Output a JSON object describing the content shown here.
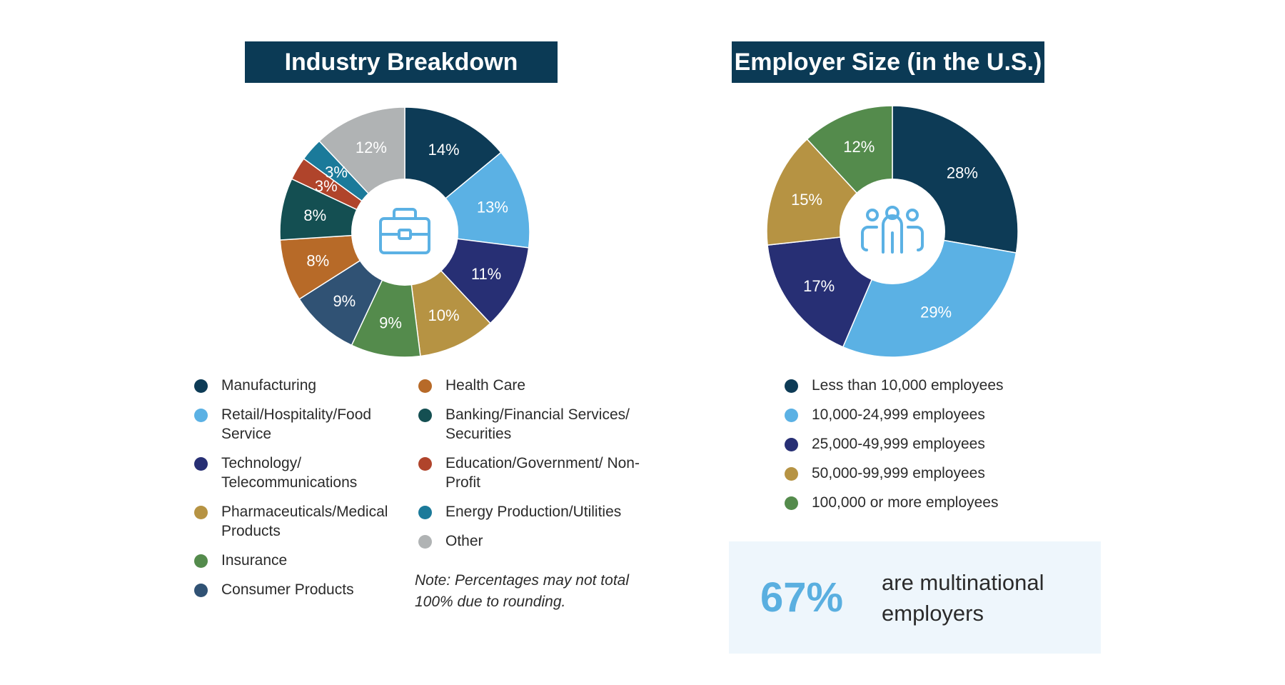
{
  "charts": {
    "industry": {
      "title": "Industry Breakdown",
      "icon": "briefcase-icon",
      "note": "Note: Percentages may not total 100% due to rounding."
    },
    "employer_size": {
      "title": "Employer Size (in the U.S.)",
      "icon": "people-group-icon"
    }
  },
  "callout": {
    "value": "67%",
    "text": "are multinational employers"
  },
  "chart_data": [
    {
      "type": "pie",
      "title": "Industry Breakdown",
      "categories": [
        "Manufacturing",
        "Retail/Hospitality/Food Service",
        "Technology/ Telecommunications",
        "Pharmaceuticals/Medical Products",
        "Insurance",
        "Consumer Products",
        "Health Care",
        "Banking/Financial Services/ Securities",
        "Education/Government/ Non-Profit",
        "Energy Production/Utilities",
        "Other"
      ],
      "values": [
        14,
        13,
        11,
        10,
        9,
        9,
        8,
        8,
        3,
        3,
        12
      ],
      "labels": [
        "14%",
        "13%",
        "11%",
        "10%",
        "9%",
        "9%",
        "8%",
        "8%",
        "3%",
        "3%",
        "12%"
      ],
      "colors": [
        "#0d3b56",
        "#5bb1e4",
        "#272f74",
        "#b69343",
        "#548b4c",
        "#305274",
        "#b76a28",
        "#144f52",
        "#b0442b",
        "#1b7a9a",
        "#b0b3b4"
      ],
      "legend": "bottom"
    },
    {
      "type": "pie",
      "title": "Employer Size (in the U.S.)",
      "categories": [
        "Less than 10,000 employees",
        "10,000-24,999 employees",
        "25,000-49,999 employees",
        "50,000-99,999 employees",
        "100,000 or more employees"
      ],
      "values": [
        28,
        29,
        17,
        15,
        12
      ],
      "labels": [
        "28%",
        "29%",
        "17%",
        "15%",
        "12%"
      ],
      "colors": [
        "#0d3b56",
        "#5bb1e4",
        "#272f74",
        "#b69343",
        "#548b4c"
      ],
      "legend": "bottom"
    }
  ]
}
